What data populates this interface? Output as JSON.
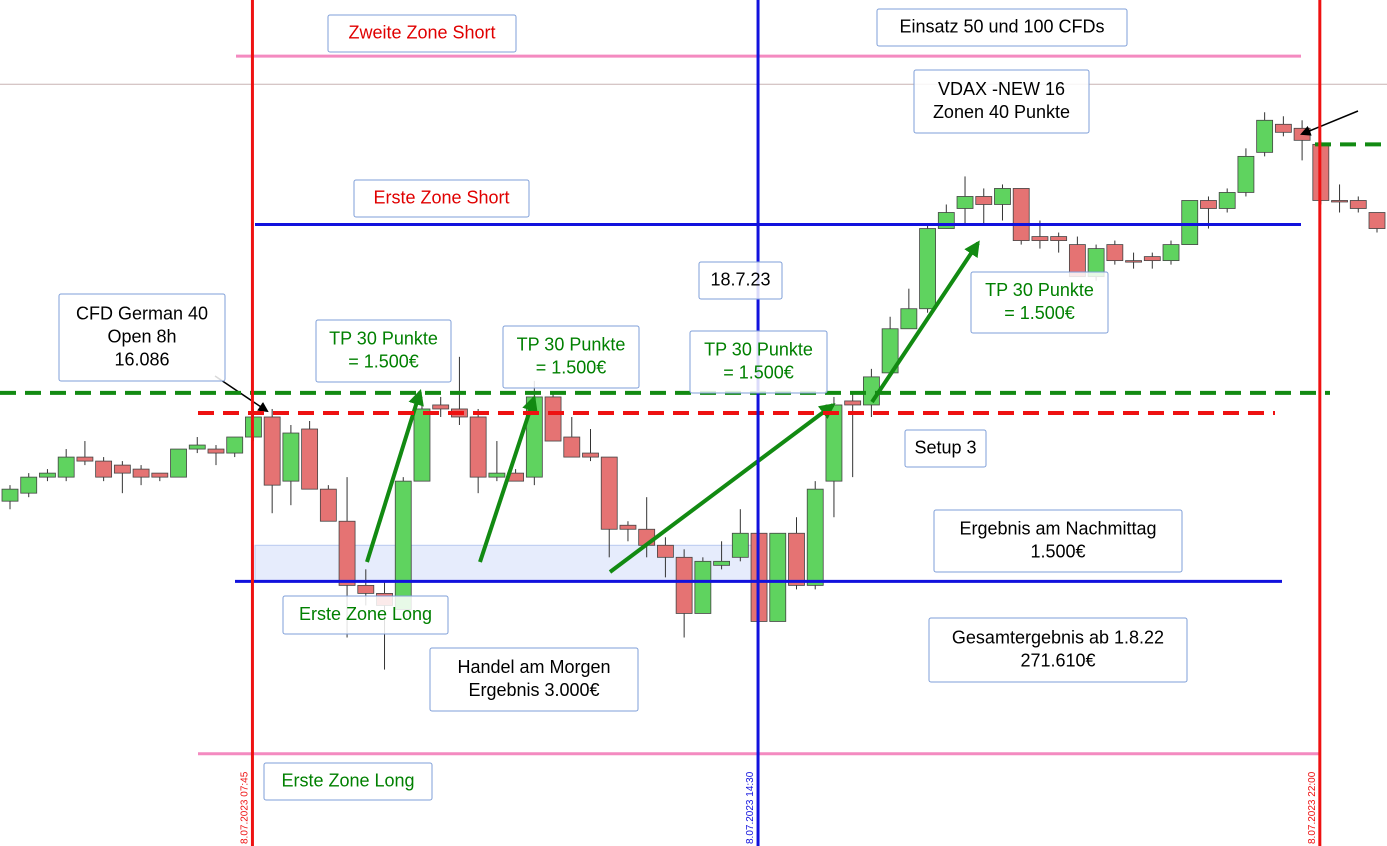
{
  "chart_data": {
    "type": "candlestick",
    "ylim": [
      15973,
      16184
    ],
    "up_color": "#5fd35f",
    "down_color": "#e57373",
    "categories": [
      null,
      null,
      null,
      null,
      null,
      null,
      null,
      null,
      null,
      null,
      null,
      null,
      null,
      "8.07.2023 07:45",
      null,
      null,
      null,
      null,
      null,
      null,
      null,
      null,
      null,
      null,
      null,
      null,
      null,
      null,
      null,
      null,
      null,
      null,
      null,
      null,
      null,
      null,
      null,
      null,
      null,
      null,
      "8.07.2023 14:30",
      null,
      null,
      null,
      null,
      null,
      null,
      null,
      null,
      null,
      null,
      null,
      null,
      null,
      null,
      null,
      null,
      null,
      null,
      null,
      null,
      null,
      null,
      null,
      null,
      null,
      null,
      null,
      null,
      null,
      "8.07.2023 22:00",
      null,
      null,
      null
    ],
    "category_line_colors": [
      "#ee1111",
      "#1111dd",
      "#ee1111"
    ],
    "open": [
      16059,
      16061,
      16065,
      16065,
      16070,
      16069,
      16068,
      16067,
      16066,
      16065,
      16072,
      16072,
      16071,
      16075,
      16080,
      16064,
      16077,
      16062,
      16054,
      16038,
      16036,
      16032,
      16064,
      16083,
      16082,
      16080,
      16065,
      16066,
      16065,
      16085,
      16075,
      16071,
      16070,
      16053,
      16052,
      16048,
      16045,
      16031,
      16043,
      16045,
      16051,
      16029,
      16051,
      16038,
      16064,
      16084,
      16083,
      16091,
      16102,
      16107,
      16127,
      16132,
      16135,
      16133,
      16137,
      16125,
      16125,
      16123,
      16115,
      16123,
      16119,
      16120,
      16119,
      16123,
      16134,
      16132,
      16136,
      16146,
      16153,
      16152,
      16148,
      16134,
      16134,
      16131
    ],
    "high": [
      16063,
      16066,
      16067,
      16072,
      16074,
      16070,
      16069,
      16068,
      16066,
      16072,
      16075,
      16073,
      16075,
      16082,
      16082,
      16078,
      16079,
      16063,
      16065,
      16042,
      16039,
      16065,
      16085,
      16085,
      16095,
      16082,
      16074,
      16067,
      16089,
      16086,
      16080,
      16077,
      16070,
      16054,
      16060,
      16050,
      16047,
      16045,
      16049,
      16057,
      16052,
      16051,
      16055,
      16064,
      16085,
      16086,
      16092,
      16105,
      16112,
      16128,
      16133,
      16140,
      16137,
      16138,
      16137,
      16129,
      16126,
      16125,
      16123,
      16124,
      16121,
      16121,
      16124,
      16134,
      16135,
      16137,
      16147,
      16156,
      16155,
      16154,
      16149,
      16138,
      16135,
      16131
    ],
    "low": [
      16057,
      16060,
      16064,
      16064,
      16068,
      16064,
      16061,
      16063,
      16064,
      16065,
      16071,
      16068,
      16070,
      16074,
      16056,
      16058,
      16062,
      16054,
      16025,
      16033,
      16017,
      16032,
      16064,
      16080,
      16078,
      16061,
      16064,
      16064,
      16063,
      16074,
      16070,
      16069,
      16045,
      16049,
      16045,
      16040,
      16025,
      16031,
      16042,
      16044,
      16029,
      16029,
      16037,
      16037,
      16055,
      16065,
      16080,
      16090,
      16102,
      16106,
      16127,
      16128,
      16128,
      16129,
      16123,
      16122,
      16121,
      16115,
      16114,
      16118,
      16117,
      16117,
      16118,
      16123,
      16127,
      16131,
      16135,
      16145,
      16150,
      16144,
      16133,
      16131,
      16131,
      16126
    ],
    "close": [
      16062,
      16065,
      16066,
      16070,
      16069,
      16065,
      16066,
      16065,
      16065,
      16072,
      16073,
      16071,
      16075,
      16080,
      16063,
      16076,
      16062,
      16054,
      16038,
      16036,
      16033,
      16064,
      16082,
      16082,
      16080,
      16065,
      16066,
      16064,
      16085,
      16074,
      16070,
      16070,
      16052,
      16052,
      16048,
      16045,
      16031,
      16044,
      16044,
      16051,
      16029,
      16051,
      16038,
      16062,
      16083,
      16083,
      16090,
      16102,
      16107,
      16127,
      16131,
      16135,
      16133,
      16137,
      16124,
      16124,
      16124,
      16115,
      16122,
      16119,
      16119,
      16119,
      16123,
      16134,
      16132,
      16136,
      16145,
      16154,
      16151,
      16149,
      16134,
      16134,
      16132,
      16127
    ],
    "zone": [
      16039,
      16048
    ],
    "levels": [
      {
        "value": 16170,
        "color": "#f48ac0",
        "dash": false
      },
      {
        "value": 16163,
        "color": "#c8b4b4",
        "dash": false
      },
      {
        "value": 16148,
        "color": "#128a12",
        "dash": true
      },
      {
        "value": 16128,
        "color": "#1111dd",
        "dash": false
      },
      {
        "value": 16086,
        "color": "#128a12",
        "dash": true
      },
      {
        "value": 16081,
        "color": "#ee1111",
        "dash": true
      },
      {
        "value": 16039,
        "color": "#1111dd",
        "dash": false
      },
      {
        "value": 15996,
        "color": "#f48ac0",
        "dash": false
      }
    ],
    "annotations": [
      {
        "lines": [
          "Zweite Zone Short"
        ],
        "color": "#e00000"
      },
      {
        "lines": [
          "Einsatz 50 und 100 CFDs"
        ],
        "color": "#000000"
      },
      {
        "lines": [
          "VDAX -NEW 16",
          "Zonen 40 Punkte"
        ],
        "color": "#000000"
      },
      {
        "lines": [
          "Erste Zone Short"
        ],
        "color": "#e00000"
      },
      {
        "lines": [
          "18.7.23"
        ],
        "color": "#000000"
      },
      {
        "lines": [
          "CFD German 40",
          "Open 8h",
          "16.086"
        ],
        "color": "#000000"
      },
      {
        "lines": [
          "TP 30 Punkte",
          "= 1.500€"
        ],
        "color": "#008000"
      },
      {
        "lines": [
          "TP 30 Punkte",
          "= 1.500€"
        ],
        "color": "#008000"
      },
      {
        "lines": [
          "TP 30 Punkte",
          "= 1.500€"
        ],
        "color": "#008000"
      },
      {
        "lines": [
          "TP 30 Punkte",
          "= 1.500€"
        ],
        "color": "#008000"
      },
      {
        "lines": [
          "Setup 3"
        ],
        "color": "#000000"
      },
      {
        "lines": [
          "Ergebnis am Nachmittag",
          "1.500€"
        ],
        "color": "#000000"
      },
      {
        "lines": [
          "Erste Zone Long"
        ],
        "color": "#008000"
      },
      {
        "lines": [
          "Handel am Morgen",
          "Ergebnis 3.000€"
        ],
        "color": "#000000"
      },
      {
        "lines": [
          "Gesamtergebnis ab 1.8.22",
          "271.610€"
        ],
        "color": "#000000"
      },
      {
        "lines": [
          "Erste Zone Long"
        ],
        "color": "#008000"
      }
    ]
  }
}
